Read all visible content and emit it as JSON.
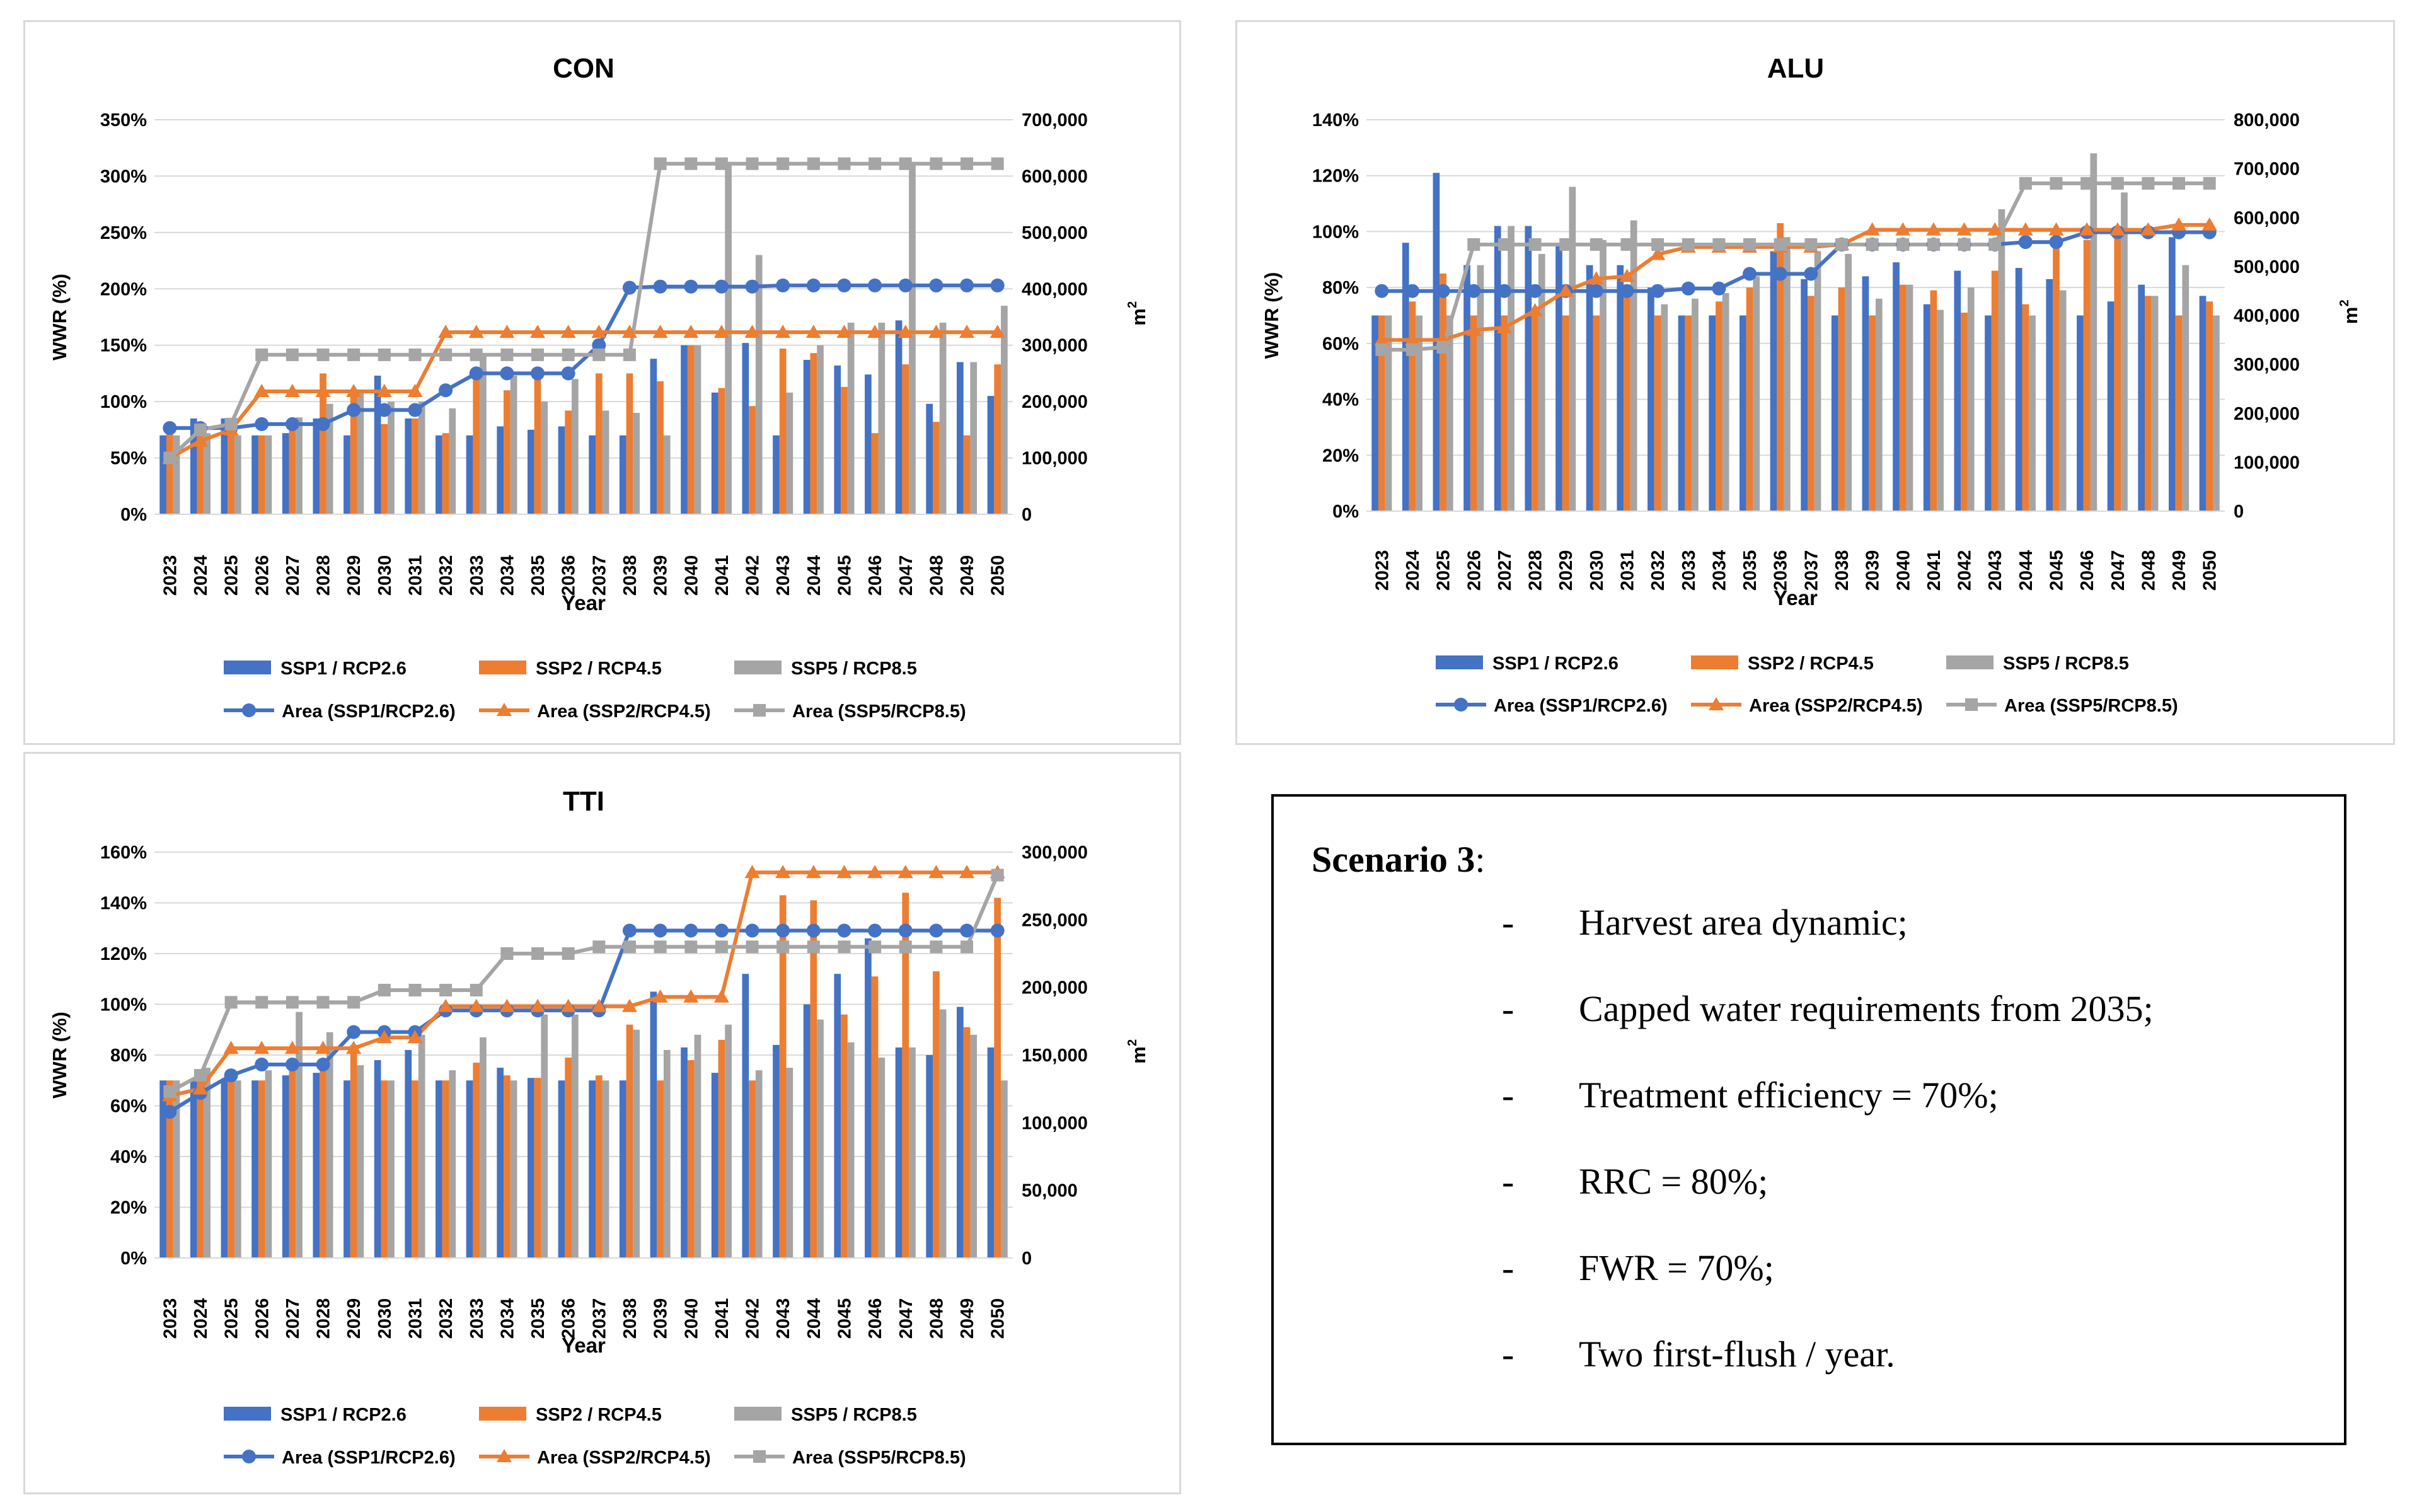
{
  "colors": {
    "ssp1": "#4472c4",
    "ssp2": "#ed7d31",
    "ssp5": "#a5a5a5",
    "grid": "#d9d9d9",
    "text": "#000000"
  },
  "years": [
    "2023",
    "2024",
    "2025",
    "2026",
    "2027",
    "2028",
    "2029",
    "2030",
    "2031",
    "2032",
    "2033",
    "2034",
    "2035",
    "2036",
    "2037",
    "2038",
    "2039",
    "2040",
    "2041",
    "2042",
    "2043",
    "2044",
    "2045",
    "2046",
    "2047",
    "2048",
    "2049",
    "2050"
  ],
  "chart_data": [
    {
      "id": "con",
      "type": "bar",
      "title": "CON",
      "xlabel": "Year",
      "ylabel": "WWR (%)",
      "y2label": "m",
      "y2sup": "2",
      "ylim": [
        0,
        350
      ],
      "ytick_labels": [
        "0%",
        "50%",
        "100%",
        "150%",
        "200%",
        "250%",
        "300%",
        "350%"
      ],
      "y2lim": [
        0,
        700000
      ],
      "y2tick_labels": [
        "0",
        "100,000",
        "200,000",
        "300,000",
        "400,000",
        "500,000",
        "600,000",
        "700,000"
      ],
      "legend": [
        "SSP1 / RCP2.6",
        "SSP2 / RCP4.5",
        "SSP5 / RCP8.5",
        "Area (SSP1/RCP2.6)",
        "Area (SSP2/RCP4.5)",
        "Area (SSP5/RCP8.5)"
      ],
      "bars": [
        [
          70,
          85,
          85,
          70,
          72,
          85,
          70,
          123,
          85,
          70,
          70,
          78,
          75,
          78,
          70,
          70,
          138,
          150,
          108,
          152,
          70,
          137,
          132,
          124,
          172,
          98,
          135,
          105
        ],
        [
          72,
          70,
          70,
          70,
          75,
          125,
          105,
          80,
          85,
          72,
          125,
          110,
          125,
          92,
          125,
          125,
          118,
          150,
          112,
          96,
          147,
          143,
          113,
          72,
          133,
          82,
          70,
          133
        ],
        [
          70,
          72,
          70,
          70,
          86,
          98,
          110,
          100,
          100,
          94,
          140,
          123,
          100,
          120,
          92,
          90,
          70,
          150,
          310,
          230,
          108,
          150,
          170,
          170,
          310,
          170,
          135,
          185
        ]
      ],
      "lines": [
        [
          153000,
          153000,
          153000,
          160000,
          160000,
          160000,
          185000,
          185000,
          185000,
          220000,
          250000,
          250000,
          250000,
          250000,
          300000,
          402000,
          404000,
          404000,
          404000,
          404000,
          406000,
          406000,
          406000,
          406000,
          406000,
          406000,
          406000,
          406000
        ],
        [
          100000,
          130000,
          150000,
          218000,
          218000,
          218000,
          218000,
          218000,
          218000,
          323000,
          323000,
          323000,
          323000,
          323000,
          323000,
          323000,
          323000,
          323000,
          323000,
          323000,
          323000,
          323000,
          323000,
          323000,
          323000,
          323000,
          323000,
          323000
        ],
        [
          100000,
          150000,
          160000,
          283000,
          283000,
          283000,
          283000,
          283000,
          283000,
          283000,
          283000,
          283000,
          283000,
          283000,
          283000,
          283000,
          622000,
          622000,
          622000,
          622000,
          622000,
          622000,
          622000,
          622000,
          622000,
          622000,
          622000,
          622000
        ]
      ]
    },
    {
      "id": "alu",
      "type": "bar",
      "title": "ALU",
      "xlabel": "Year",
      "ylabel": "WWR (%)",
      "y2label": "m",
      "y2sup": "2",
      "ylim": [
        0,
        140
      ],
      "ytick_labels": [
        "0%",
        "20%",
        "40%",
        "60%",
        "80%",
        "100%",
        "120%",
        "140%"
      ],
      "y2lim": [
        0,
        800000
      ],
      "y2tick_labels": [
        "0",
        "100,000",
        "200,000",
        "300,000",
        "400,000",
        "500,000",
        "600,000",
        "700,000",
        "800,000"
      ],
      "legend": [
        "SSP1 / RCP2.6",
        "SSP2 / RCP4.5",
        "SSP5 / RCP8.5",
        "Area (SSP1/RCP2.6)",
        "Area (SSP2/RCP4.5)",
        "Area (SSP5/RCP8.5)"
      ],
      "bars": [
        [
          70,
          96,
          121,
          88,
          102,
          102,
          95,
          88,
          88,
          80,
          70,
          70,
          70,
          93,
          83,
          70,
          84,
          89,
          74,
          86,
          70,
          87,
          83,
          70,
          75,
          81,
          98,
          77
        ],
        [
          70,
          75,
          85,
          70,
          70,
          70,
          70,
          70,
          78,
          70,
          70,
          75,
          80,
          103,
          77,
          80,
          70,
          81,
          79,
          71,
          86,
          74,
          99,
          97,
          99,
          77,
          70,
          75
        ],
        [
          70,
          70,
          70,
          88,
          102,
          92,
          116,
          97,
          104,
          74,
          76,
          78,
          84,
          98,
          93,
          92,
          76,
          81,
          72,
          80,
          108,
          70,
          79,
          128,
          114,
          77,
          88,
          70
        ]
      ],
      "lines": [
        [
          450000,
          450000,
          450000,
          450000,
          450000,
          450000,
          450000,
          450000,
          450000,
          450000,
          455000,
          455000,
          485000,
          485000,
          485000,
          545000,
          545000,
          545000,
          545000,
          545000,
          545000,
          550000,
          550000,
          570000,
          570000,
          570000,
          570000,
          570000
        ],
        [
          350000,
          350000,
          350000,
          370000,
          375000,
          410000,
          450000,
          475000,
          480000,
          525000,
          540000,
          540000,
          540000,
          540000,
          540000,
          545000,
          575000,
          575000,
          575000,
          575000,
          575000,
          575000,
          575000,
          575000,
          575000,
          575000,
          585000,
          585000
        ],
        [
          330000,
          330000,
          335000,
          545000,
          545000,
          545000,
          545000,
          545000,
          545000,
          545000,
          545000,
          545000,
          545000,
          545000,
          545000,
          545000,
          545000,
          545000,
          545000,
          545000,
          545000,
          670000,
          670000,
          670000,
          670000,
          670000,
          670000,
          670000
        ]
      ]
    },
    {
      "id": "tti",
      "type": "bar",
      "title": "TTI",
      "xlabel": "Year",
      "ylabel": "WWR (%)",
      "y2label": "m",
      "y2sup": "2",
      "ylim": [
        0,
        160
      ],
      "ytick_labels": [
        "0%",
        "20%",
        "40%",
        "60%",
        "80%",
        "100%",
        "120%",
        "140%",
        "160%"
      ],
      "y2lim": [
        0,
        300000
      ],
      "y2tick_labels": [
        "0",
        "50,000",
        "100,000",
        "150,000",
        "200,000",
        "250,000",
        "300,000"
      ],
      "legend": [
        "SSP1 / RCP2.6",
        "SSP2 / RCP4.5",
        "SSP5 / RCP8.5",
        "Area (SSP1/RCP2.6)",
        "Area (SSP2/RCP4.5)",
        "Area (SSP5/RCP8.5)"
      ],
      "bars": [
        [
          70,
          70,
          70,
          70,
          72,
          73,
          70,
          78,
          82,
          70,
          70,
          75,
          71,
          70,
          70,
          70,
          105,
          83,
          73,
          112,
          84,
          100,
          112,
          126,
          83,
          80,
          99,
          83
        ],
        [
          70,
          72,
          72,
          70,
          75,
          75,
          84,
          70,
          70,
          70,
          77,
          72,
          71,
          79,
          72,
          92,
          70,
          78,
          86,
          70,
          143,
          141,
          96,
          111,
          144,
          113,
          91,
          142
        ],
        [
          70,
          75,
          70,
          74,
          97,
          89,
          76,
          70,
          88,
          74,
          87,
          70,
          96,
          96,
          70,
          90,
          82,
          88,
          92,
          74,
          75,
          94,
          85,
          79,
          83,
          98,
          88,
          70
        ]
      ],
      "lines": [
        [
          108000,
          122000,
          135000,
          143000,
          143000,
          143000,
          167000,
          167000,
          167000,
          183000,
          183000,
          183000,
          183000,
          183000,
          183000,
          242000,
          242000,
          242000,
          242000,
          242000,
          242000,
          242000,
          242000,
          242000,
          242000,
          242000,
          242000,
          242000
        ],
        [
          120000,
          125000,
          155000,
          155000,
          155000,
          155000,
          155000,
          163000,
          163000,
          186000,
          186000,
          186000,
          186000,
          186000,
          186000,
          186000,
          193000,
          193000,
          193000,
          285000,
          285000,
          285000,
          285000,
          285000,
          285000,
          285000,
          285000,
          285000
        ],
        [
          123000,
          135000,
          189000,
          189000,
          189000,
          189000,
          189000,
          198000,
          198000,
          198000,
          198000,
          225000,
          225000,
          225000,
          230000,
          230000,
          230000,
          230000,
          230000,
          230000,
          230000,
          230000,
          230000,
          230000,
          230000,
          230000,
          230000,
          283000
        ]
      ]
    }
  ],
  "scenario": {
    "title": "Scenario 3",
    "colon": ":",
    "items": [
      "Harvest area dynamic;",
      "Capped water requirements from 2035;",
      "Treatment efficiency = 70%;",
      "RRC = 80%;",
      "FWR = 70%;",
      "Two first-flush / year."
    ]
  }
}
